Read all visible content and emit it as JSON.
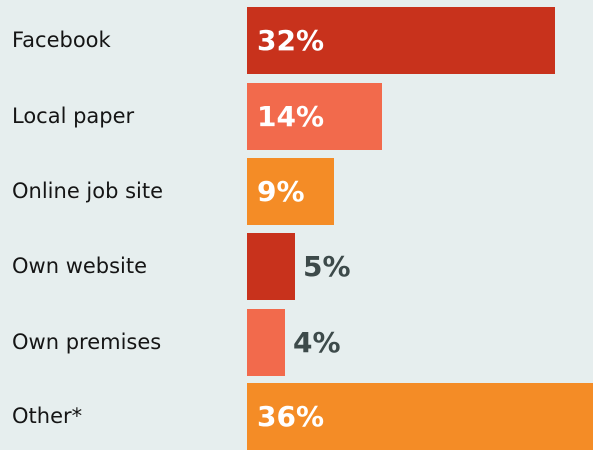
{
  "chart_data": {
    "type": "bar",
    "orientation": "horizontal",
    "categories": [
      "Facebook",
      "Local paper",
      "Online job site",
      "Own website",
      "Own premises",
      "Other*"
    ],
    "values": [
      32,
      14,
      9,
      5,
      4,
      36
    ],
    "value_labels": [
      "32%",
      "14%",
      "9%",
      "5%",
      "4%",
      "36%"
    ],
    "colors": [
      "#c8321c",
      "#f26a4c",
      "#f48c26",
      "#c8321c",
      "#f26a4c",
      "#f48c26"
    ],
    "xlim": [
      0,
      36
    ],
    "grid": false,
    "legend": "none"
  }
}
